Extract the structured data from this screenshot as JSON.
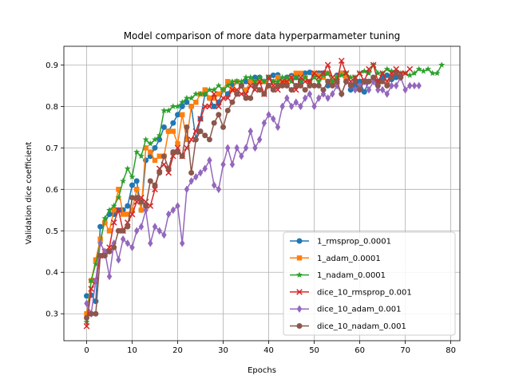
{
  "chart_data": {
    "type": "line",
    "title": "Model comparison of more data hyperparmameter tuning",
    "xlabel": "Epochs",
    "ylabel": "Validation dice coefficient",
    "xlim": [
      -5,
      82
    ],
    "ylim": [
      0.235,
      0.945
    ],
    "xticks": [
      0,
      10,
      20,
      30,
      40,
      50,
      60,
      70,
      80
    ],
    "yticks": [
      0.3,
      0.4,
      0.5,
      0.6,
      0.7,
      0.8,
      0.9
    ],
    "grid": true,
    "legend_position": "lower-right",
    "series": [
      {
        "name": "1_rmsprop_0.0001",
        "color": "#1f77b4",
        "marker": "circle",
        "values": [
          0.343,
          0.345,
          0.33,
          0.51,
          0.52,
          0.54,
          0.54,
          0.55,
          0.55,
          0.56,
          0.61,
          0.62,
          0.55,
          0.67,
          0.68,
          0.7,
          0.72,
          0.75,
          0.74,
          0.76,
          0.78,
          0.8,
          0.81,
          0.8,
          0.72,
          0.77,
          0.83,
          0.82,
          0.8,
          0.81,
          0.84,
          0.83,
          0.85,
          0.86,
          0.85,
          0.86,
          0.86,
          0.87,
          0.87,
          0.86,
          0.87,
          0.875,
          0.876,
          0.86,
          0.87,
          0.874,
          0.87,
          0.86,
          0.88,
          0.882,
          0.875,
          0.88,
          0.88,
          0.85,
          0.855,
          0.875,
          0.88,
          0.87,
          0.84,
          0.85,
          0.86,
          0.835,
          0.86,
          0.87,
          0.86,
          0.87,
          0.875,
          0.865,
          0.87
        ]
      },
      {
        "name": "1_adam_0.0001",
        "color": "#ff7f0e",
        "marker": "square",
        "values": [
          0.3,
          0.38,
          0.43,
          0.48,
          0.52,
          0.5,
          0.55,
          0.6,
          0.54,
          0.54,
          0.55,
          0.6,
          0.55,
          0.7,
          0.69,
          0.67,
          0.68,
          0.68,
          0.74,
          0.74,
          0.71,
          0.78,
          0.72,
          0.8,
          0.81,
          0.83,
          0.84,
          0.82,
          0.82,
          0.83,
          0.84,
          0.86,
          0.84,
          0.86,
          0.85,
          0.84,
          0.86,
          0.86,
          0.86,
          0.86,
          0.85,
          0.86,
          0.87,
          0.86,
          0.86,
          0.87,
          0.88,
          0.88,
          0.87,
          0.86,
          0.88,
          0.875,
          0.87,
          0.88,
          0.86,
          0.87,
          0.88,
          0.87
        ]
      },
      {
        "name": "1_nadam_0.0001",
        "color": "#2ca02c",
        "marker": "star",
        "values": [
          0.28,
          0.38,
          0.42,
          0.47,
          0.53,
          0.55,
          0.56,
          0.58,
          0.62,
          0.65,
          0.63,
          0.69,
          0.68,
          0.72,
          0.71,
          0.72,
          0.73,
          0.79,
          0.79,
          0.8,
          0.8,
          0.81,
          0.82,
          0.82,
          0.83,
          0.83,
          0.83,
          0.84,
          0.84,
          0.85,
          0.84,
          0.85,
          0.86,
          0.86,
          0.86,
          0.87,
          0.87,
          0.86,
          0.87,
          0.86,
          0.87,
          0.86,
          0.86,
          0.87,
          0.87,
          0.86,
          0.87,
          0.86,
          0.87,
          0.86,
          0.87,
          0.86,
          0.875,
          0.88,
          0.86,
          0.87,
          0.875,
          0.88,
          0.87,
          0.87,
          0.88,
          0.885,
          0.88,
          0.9,
          0.88,
          0.88,
          0.89,
          0.885,
          0.885,
          0.88,
          0.88,
          0.875,
          0.88,
          0.89,
          0.885,
          0.89,
          0.88,
          0.88,
          0.9
        ]
      },
      {
        "name": "dice_10_rmsprop_0.001",
        "color": "#d62728",
        "marker": "x",
        "values": [
          0.27,
          0.36,
          0.38,
          0.44,
          0.45,
          0.46,
          0.52,
          0.55,
          0.5,
          0.52,
          0.54,
          0.57,
          0.58,
          0.57,
          0.56,
          0.6,
          0.65,
          0.66,
          0.64,
          0.68,
          0.7,
          0.68,
          0.7,
          0.72,
          0.74,
          0.77,
          0.8,
          0.8,
          0.83,
          0.8,
          0.82,
          0.82,
          0.84,
          0.84,
          0.83,
          0.83,
          0.85,
          0.84,
          0.86,
          0.83,
          0.87,
          0.85,
          0.84,
          0.86,
          0.86,
          0.87,
          0.84,
          0.87,
          0.86,
          0.86,
          0.88,
          0.87,
          0.88,
          0.9,
          0.87,
          0.86,
          0.91,
          0.88,
          0.86,
          0.87,
          0.88,
          0.86,
          0.89,
          0.9,
          0.86,
          0.88,
          0.86,
          0.88,
          0.89,
          0.88,
          0.88,
          0.89
        ]
      },
      {
        "name": "dice_10_adam_0.001",
        "color": "#9467bd",
        "marker": "diamond",
        "values": [
          0.325,
          0.3,
          0.38,
          0.47,
          0.45,
          0.39,
          0.47,
          0.43,
          0.48,
          0.47,
          0.46,
          0.5,
          0.51,
          0.55,
          0.47,
          0.51,
          0.5,
          0.49,
          0.54,
          0.55,
          0.56,
          0.47,
          0.6,
          0.62,
          0.63,
          0.64,
          0.65,
          0.67,
          0.61,
          0.6,
          0.66,
          0.7,
          0.66,
          0.7,
          0.68,
          0.7,
          0.74,
          0.7,
          0.72,
          0.76,
          0.78,
          0.77,
          0.75,
          0.8,
          0.82,
          0.8,
          0.81,
          0.8,
          0.82,
          0.83,
          0.8,
          0.82,
          0.83,
          0.82,
          0.83,
          0.85,
          0.83,
          0.86,
          0.85,
          0.84,
          0.85,
          0.86,
          0.84,
          0.86,
          0.84,
          0.84,
          0.83,
          0.85,
          0.85,
          0.87,
          0.84,
          0.85,
          0.85,
          0.85
        ]
      },
      {
        "name": "dice_10_nadam_0.001",
        "color": "#8c564b",
        "marker": "circle",
        "values": [
          0.29,
          0.3,
          0.3,
          0.44,
          0.44,
          0.45,
          0.46,
          0.5,
          0.5,
          0.51,
          0.58,
          0.58,
          0.57,
          0.56,
          0.62,
          0.61,
          0.64,
          0.68,
          0.65,
          0.69,
          0.69,
          0.68,
          0.75,
          0.64,
          0.72,
          0.74,
          0.73,
          0.72,
          0.76,
          0.78,
          0.75,
          0.79,
          0.81,
          0.83,
          0.85,
          0.82,
          0.82,
          0.85,
          0.84,
          0.83,
          0.85,
          0.84,
          0.85,
          0.85,
          0.85,
          0.84,
          0.85,
          0.85,
          0.84,
          0.85,
          0.85,
          0.85,
          0.84,
          0.86,
          0.85,
          0.86,
          0.83,
          0.86,
          0.85,
          0.86,
          0.84,
          0.86,
          0.86,
          0.87,
          0.85,
          0.86,
          0.85,
          0.87,
          0.88,
          0.87
        ]
      }
    ]
  }
}
